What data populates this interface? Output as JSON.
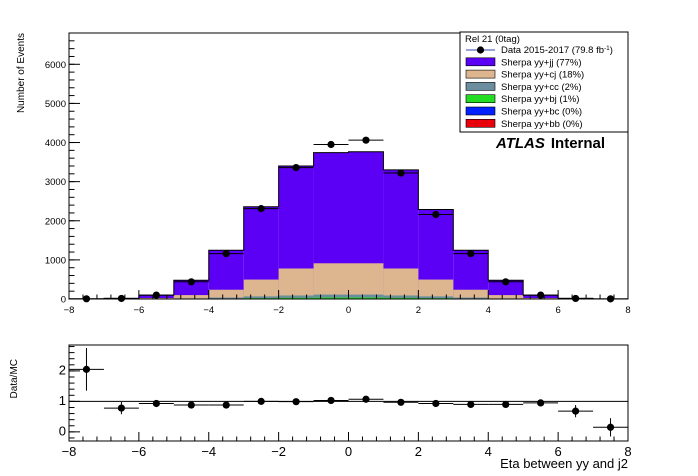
{
  "chart_data": [
    {
      "type": "bar",
      "stacked": true,
      "xlabel": "",
      "ylabel": "Number of Events",
      "xlim": [
        -8,
        8
      ],
      "ylim": [
        0,
        6800
      ],
      "bin_edges": [
        -8,
        -7,
        -6,
        -5,
        -4,
        -3,
        -2,
        -1,
        0,
        1,
        2,
        3,
        4,
        5,
        6,
        7,
        8
      ],
      "x_ticks": [
        -8,
        -6,
        -4,
        -2,
        0,
        2,
        4,
        6,
        8
      ],
      "x_tick_labels": [
        "−8",
        "−6",
        "−4",
        "−2",
        "0",
        "2",
        "4",
        "6",
        "8"
      ],
      "y_ticks": [
        0,
        1000,
        2000,
        3000,
        4000,
        5000,
        6000
      ],
      "y_tick_labels": [
        "0",
        "1000",
        "2000",
        "3000",
        "4000",
        "5000",
        "6000"
      ],
      "legend_header": "Rel 21 (0tag)",
      "legend_position": "top-right",
      "annotation_bold": "ATLAS",
      "annotation_italic": "Internal",
      "data": {
        "name": "Data 2015-2017 (79.8 fb",
        "name_suffix": "-1",
        "name_close": ")",
        "x": [
          -7.5,
          -6.5,
          -5.5,
          -4.5,
          -3.5,
          -2.5,
          -1.5,
          -0.5,
          0.5,
          1.5,
          2.5,
          3.5,
          4.5,
          5.5,
          6.5,
          7.5
        ],
        "y": [
          5,
          15,
          100,
          440,
          1160,
          2310,
          3360,
          3950,
          4060,
          3220,
          2160,
          1160,
          440,
          100,
          15,
          4
        ],
        "color": "#000000"
      },
      "series": [
        {
          "name": "Sherpa yy+bb (0%)",
          "color": "#e8000b",
          "values": [
            0,
            0,
            0,
            0,
            0,
            0,
            0,
            0,
            0,
            0,
            0,
            0,
            0,
            0,
            0,
            0
          ]
        },
        {
          "name": "Sherpa yy+bc (0%)",
          "color": "#0022ff",
          "values": [
            0,
            0,
            0,
            0,
            0,
            0,
            0,
            0,
            0,
            0,
            0,
            0,
            0,
            0,
            0,
            0
          ]
        },
        {
          "name": "Sherpa yy+bj (1%)",
          "color": "#22dd22",
          "values": [
            0,
            0,
            2,
            5,
            12,
            22,
            30,
            38,
            38,
            30,
            22,
            12,
            5,
            2,
            0,
            0
          ]
        },
        {
          "name": "Sherpa yy+cc (2%)",
          "color": "#6b8e9e",
          "values": [
            0,
            0,
            3,
            10,
            25,
            45,
            60,
            75,
            75,
            60,
            45,
            25,
            10,
            3,
            0,
            0
          ]
        },
        {
          "name": "Sherpa yy+cj (18%)",
          "color": "#ddb68f",
          "values": [
            1,
            3,
            20,
            85,
            200,
            430,
            690,
            800,
            800,
            690,
            430,
            200,
            85,
            20,
            3,
            1
          ]
        },
        {
          "name": "Sherpa yy+jj (77%)",
          "color": "#5b00f5",
          "values": [
            2,
            12,
            75,
            380,
            1010,
            1860,
            2620,
            2830,
            2850,
            2520,
            1790,
            1010,
            380,
            75,
            12,
            2
          ]
        }
      ]
    },
    {
      "type": "scatter",
      "xlabel": "Eta between yy and j2",
      "ylabel": "Data/MC",
      "xlim": [
        -8,
        8
      ],
      "ylim": [
        -0.3,
        2.85
      ],
      "reference_line": 1,
      "x_ticks": [
        -8,
        -6,
        -4,
        -2,
        0,
        2,
        4,
        6,
        8
      ],
      "x_tick_labels": [
        "−8",
        "−6",
        "−4",
        "−2",
        "0",
        "2",
        "4",
        "6",
        "8"
      ],
      "y_ticks": [
        0,
        1,
        2
      ],
      "y_tick_labels": [
        "0",
        "1",
        "2"
      ],
      "x": [
        -7.5,
        -6.5,
        -5.5,
        -4.5,
        -3.5,
        -2.5,
        -1.5,
        -0.5,
        0.5,
        1.5,
        2.5,
        3.5,
        4.5,
        5.5,
        6.5,
        7.5
      ],
      "y": [
        2.05,
        0.78,
        0.93,
        0.88,
        0.88,
        1.0,
        0.99,
        1.03,
        1.07,
        0.97,
        0.93,
        0.9,
        0.9,
        0.95,
        0.68,
        0.15
      ],
      "y_err": [
        0.7,
        0.2,
        0.1,
        0.05,
        0.03,
        0.02,
        0.02,
        0.02,
        0.02,
        0.02,
        0.02,
        0.03,
        0.05,
        0.1,
        0.2,
        0.3
      ]
    }
  ]
}
